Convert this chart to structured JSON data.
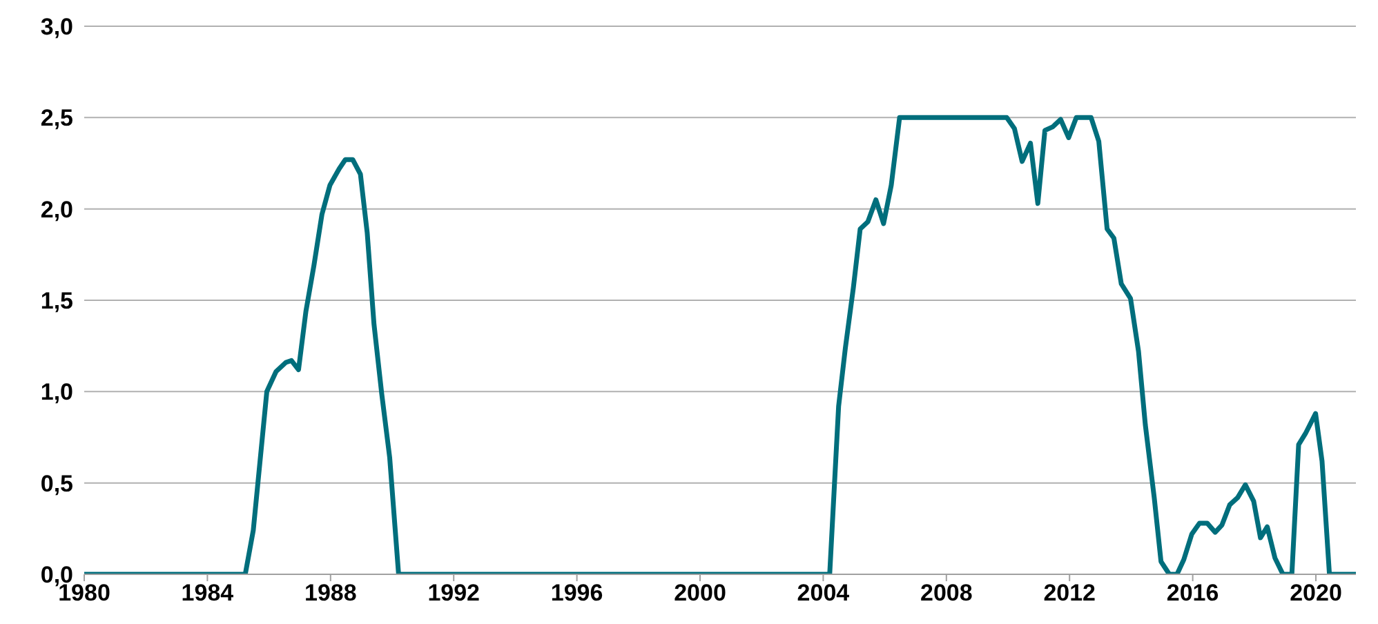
{
  "chart_data": {
    "type": "line",
    "x": [
      1980,
      1985.23,
      1985.49,
      1985.93,
      1986.23,
      1986.55,
      1986.73,
      1986.96,
      1987.2,
      1987.46,
      1987.72,
      1987.98,
      1988.28,
      1988.48,
      1988.72,
      1988.97,
      1989.19,
      1989.41,
      1989.66,
      1989.92,
      1990.21,
      2004.21,
      2004.5,
      2004.72,
      2004.98,
      2005.2,
      2005.45,
      2005.71,
      2005.96,
      2006.21,
      2006.48,
      2009.96,
      2010.21,
      2010.46,
      2010.73,
      2010.97,
      2011.2,
      2011.46,
      2011.71,
      2011.97,
      2012.22,
      2012.7,
      2012.95,
      2013.22,
      2013.44,
      2013.68,
      2013.98,
      2014.24,
      2014.46,
      2014.75,
      2014.97,
      2015.24,
      2015.49,
      2015.71,
      2015.97,
      2016.22,
      2016.47,
      2016.73,
      2016.95,
      2017.2,
      2017.46,
      2017.71,
      2017.98,
      2018.2,
      2018.42,
      2018.67,
      2018.93,
      2019.22,
      2019.44,
      2019.66,
      2019.99,
      2020.2,
      2020.44,
      2021.3
    ],
    "series": [
      {
        "color": "#006e7c",
        "values": [
          0,
          0,
          0.24,
          1.0,
          1.11,
          1.16,
          1.17,
          1.12,
          1.44,
          1.69,
          1.97,
          2.13,
          2.22,
          2.27,
          2.27,
          2.19,
          1.87,
          1.37,
          0.99,
          0.64,
          0,
          0,
          0.92,
          1.24,
          1.57,
          1.89,
          1.93,
          2.05,
          1.92,
          2.13,
          2.5,
          2.5,
          2.44,
          2.26,
          2.36,
          2.03,
          2.43,
          2.45,
          2.49,
          2.39,
          2.5,
          2.5,
          2.37,
          1.89,
          1.84,
          1.59,
          1.51,
          1.22,
          0.82,
          0.42,
          0.07,
          0,
          0,
          0.08,
          0.22,
          0.28,
          0.28,
          0.23,
          0.27,
          0.38,
          0.42,
          0.49,
          0.4,
          0.2,
          0.26,
          0.09,
          0,
          0,
          0.71,
          0.77,
          0.88,
          0.62,
          0,
          0
        ]
      }
    ],
    "xlim": [
      1980,
      2021.3
    ],
    "xticks": [
      1980,
      1984,
      1988,
      1992,
      1996,
      2000,
      2004,
      2008,
      2012,
      2016,
      2020
    ],
    "ylim": [
      0,
      3
    ],
    "yticks": [
      {
        "value": 0,
        "label": "0,0"
      },
      {
        "value": 0.5,
        "label": "0,5"
      },
      {
        "value": 1,
        "label": "1,0"
      },
      {
        "value": 1.5,
        "label": "1,5"
      },
      {
        "value": 2,
        "label": "2,0"
      },
      {
        "value": 2.5,
        "label": "2,5"
      },
      {
        "value": 3,
        "label": "3,0"
      }
    ],
    "grid": "y",
    "legend": false,
    "marker": "none",
    "line_style": "solid"
  }
}
